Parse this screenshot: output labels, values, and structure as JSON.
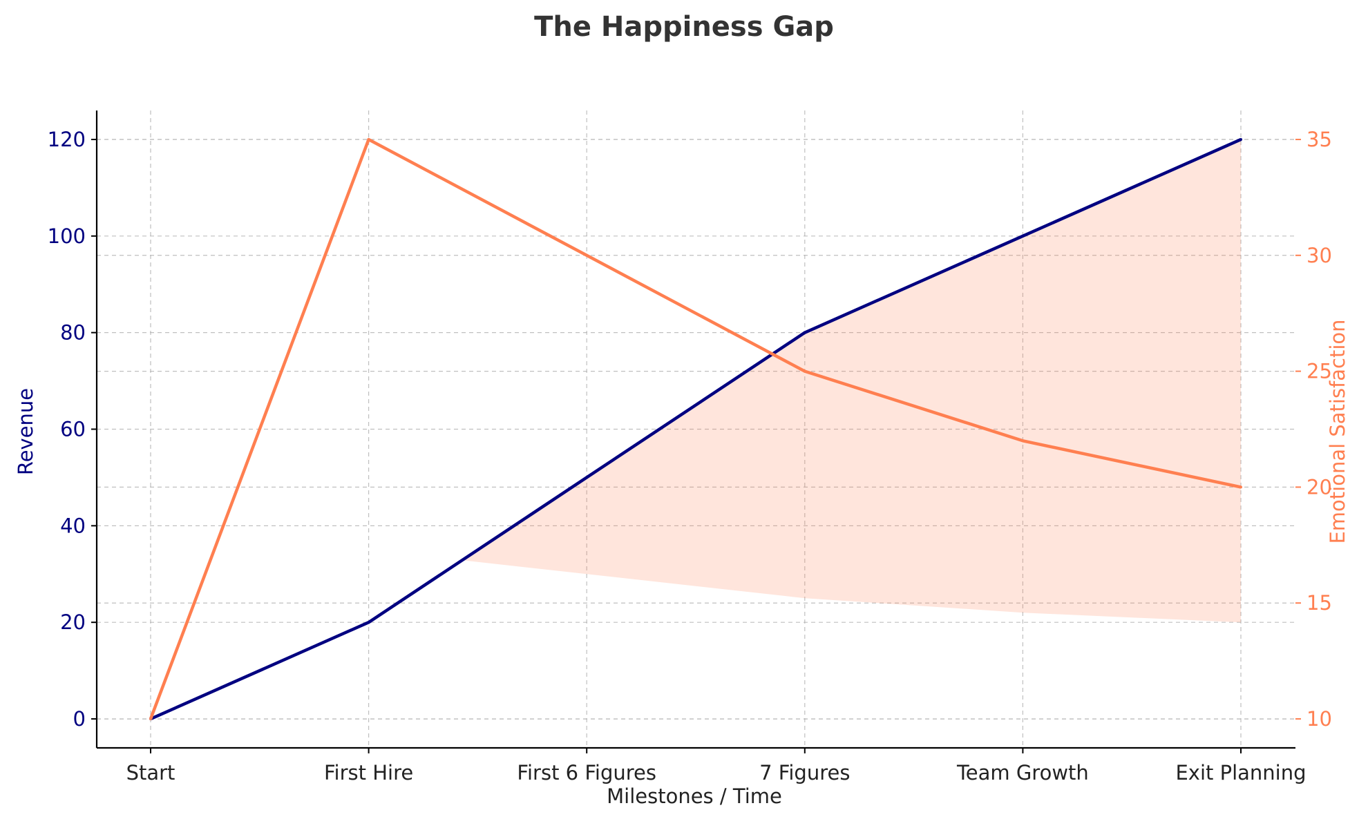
{
  "chart_data": {
    "type": "line",
    "title": "The Happiness Gap",
    "xlabel": "Milestones / Time",
    "categories": [
      "Start",
      "First Hire",
      "First 6 Figures",
      "7 Figures",
      "Team Growth",
      "Exit Planning"
    ],
    "series": [
      {
        "name": "Revenue",
        "axis": "left",
        "color": "#000080",
        "values": [
          0,
          20,
          50,
          80,
          100,
          120
        ]
      },
      {
        "name": "Emotional Satisfaction",
        "axis": "right",
        "color": "#ff7f50",
        "values": [
          10,
          35,
          30,
          25,
          22,
          20
        ]
      }
    ],
    "fill_between": {
      "color": "#ff7f50",
      "opacity": 0.2,
      "upper": "Revenue",
      "lower": "Emotional Satisfaction",
      "lower_plotted_on": "left"
    },
    "y_left": {
      "label": "Revenue",
      "color": "#000080",
      "ylim": [
        -6,
        126
      ],
      "ticks": [
        0,
        20,
        40,
        60,
        80,
        100,
        120
      ]
    },
    "y_right": {
      "label": "Emotional Satisfaction",
      "color": "#ff7f50",
      "ylim": [
        8.75,
        36.25
      ],
      "ticks": [
        10,
        15,
        20,
        25,
        30,
        35
      ]
    },
    "grid": true
  }
}
